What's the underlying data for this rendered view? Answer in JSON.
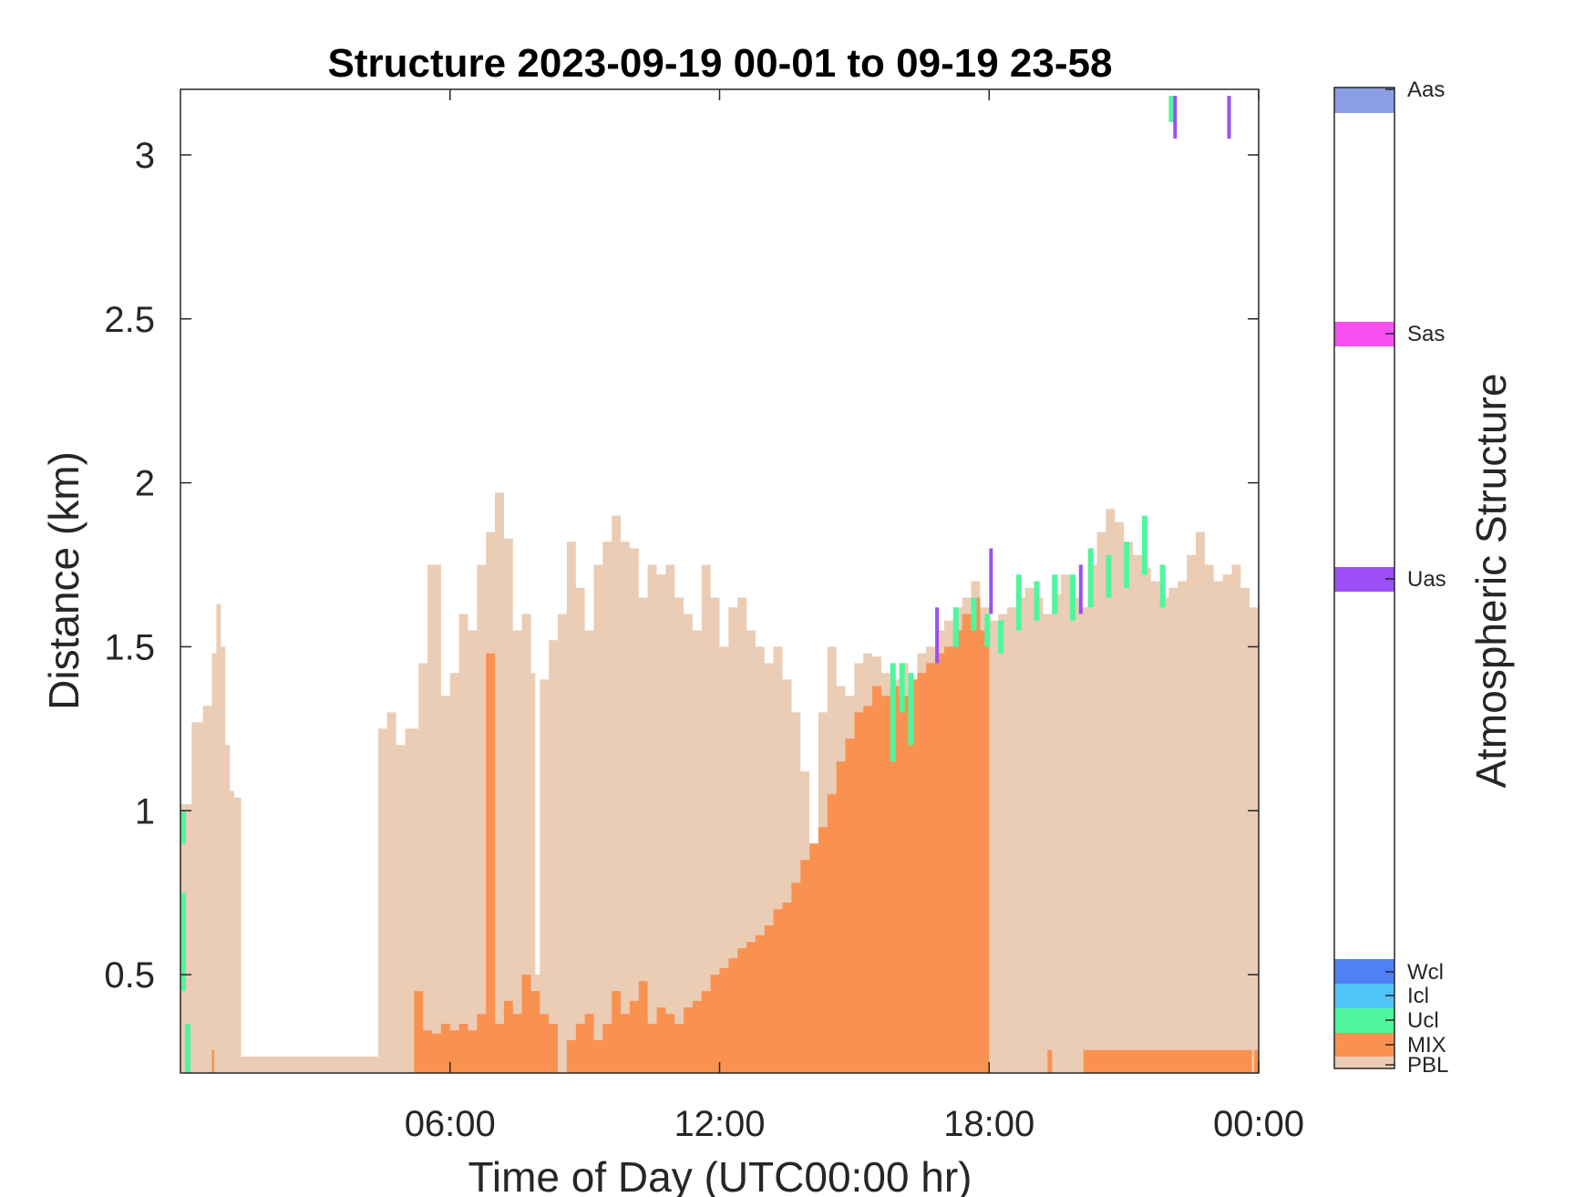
{
  "chart_data": {
    "type": "heatmap",
    "title": "Structure 2023-09-19 00-01 to 09-19 23-58",
    "xlabel": "Time of Day (UTC00:00 hr)",
    "ylabel": "Distance (km)",
    "xlim_hours": [
      0,
      24
    ],
    "ylim_km": [
      0.2,
      3.2
    ],
    "x_ticks": [
      {
        "value": 6,
        "label": "06:00"
      },
      {
        "value": 12,
        "label": "12:00"
      },
      {
        "value": 18,
        "label": "18:00"
      },
      {
        "value": 24,
        "label": "00:00"
      }
    ],
    "y_ticks": [
      {
        "value": 0.5,
        "label": "0.5"
      },
      {
        "value": 1,
        "label": "1"
      },
      {
        "value": 1.5,
        "label": "1.5"
      },
      {
        "value": 2,
        "label": "2"
      },
      {
        "value": 2.5,
        "label": "2.5"
      },
      {
        "value": 3,
        "label": "3"
      }
    ],
    "grid": false,
    "colorbar": {
      "label": "Atmospheric Structure",
      "classes": [
        {
          "name": "PBL",
          "color": "#ebccb5"
        },
        {
          "name": "MIX",
          "color": "#f99250"
        },
        {
          "name": "Ucl",
          "color": "#4ef79e"
        },
        {
          "name": "Icl",
          "color": "#50c3f7"
        },
        {
          "name": "Wcl",
          "color": "#4f80f4"
        },
        {
          "name": "Uas",
          "color": "#9b4ff4"
        },
        {
          "name": "Sas",
          "color": "#f74ff0"
        },
        {
          "name": "Aas",
          "color": "#8b9de4"
        }
      ]
    },
    "pbl_top_profile": [
      [
        0.0,
        1.02
      ],
      [
        0.25,
        1.27
      ],
      [
        0.5,
        1.32
      ],
      [
        0.7,
        1.48
      ],
      [
        0.8,
        1.63
      ],
      [
        0.9,
        1.5
      ],
      [
        1.0,
        1.2
      ],
      [
        1.1,
        1.06
      ],
      [
        1.2,
        1.04
      ],
      [
        1.35,
        0.25
      ],
      [
        4.3,
        0.25
      ],
      [
        4.4,
        1.25
      ],
      [
        4.6,
        1.3
      ],
      [
        4.8,
        1.2
      ],
      [
        5.0,
        1.25
      ],
      [
        5.3,
        1.45
      ],
      [
        5.5,
        1.75
      ],
      [
        5.8,
        1.35
      ],
      [
        6.0,
        1.42
      ],
      [
        6.2,
        1.6
      ],
      [
        6.4,
        1.55
      ],
      [
        6.6,
        1.75
      ],
      [
        6.8,
        1.85
      ],
      [
        7.0,
        1.97
      ],
      [
        7.2,
        1.83
      ],
      [
        7.4,
        1.55
      ],
      [
        7.6,
        1.6
      ],
      [
        7.8,
        1.42
      ],
      [
        7.9,
        0.5
      ],
      [
        8.0,
        1.4
      ],
      [
        8.2,
        1.52
      ],
      [
        8.4,
        1.6
      ],
      [
        8.6,
        1.82
      ],
      [
        8.8,
        1.68
      ],
      [
        9.0,
        1.55
      ],
      [
        9.2,
        1.75
      ],
      [
        9.4,
        1.82
      ],
      [
        9.6,
        1.9
      ],
      [
        9.8,
        1.82
      ],
      [
        10.0,
        1.8
      ],
      [
        10.2,
        1.65
      ],
      [
        10.4,
        1.75
      ],
      [
        10.6,
        1.72
      ],
      [
        10.8,
        1.75
      ],
      [
        11.0,
        1.65
      ],
      [
        11.2,
        1.6
      ],
      [
        11.4,
        1.55
      ],
      [
        11.6,
        1.75
      ],
      [
        11.8,
        1.65
      ],
      [
        12.0,
        1.5
      ],
      [
        12.2,
        1.62
      ],
      [
        12.4,
        1.65
      ],
      [
        12.6,
        1.55
      ],
      [
        12.8,
        1.5
      ],
      [
        13.0,
        1.45
      ],
      [
        13.2,
        1.5
      ],
      [
        13.4,
        1.4
      ],
      [
        13.6,
        1.3
      ],
      [
        13.8,
        1.12
      ],
      [
        14.0,
        0.78
      ],
      [
        14.2,
        1.3
      ],
      [
        14.4,
        1.5
      ],
      [
        14.6,
        1.38
      ],
      [
        14.8,
        1.35
      ],
      [
        15.0,
        1.45
      ],
      [
        15.2,
        1.48
      ],
      [
        15.4,
        1.47
      ],
      [
        15.6,
        1.42
      ],
      [
        15.8,
        1.4
      ],
      [
        16.0,
        1.45
      ],
      [
        16.2,
        1.4
      ],
      [
        16.4,
        1.48
      ],
      [
        16.6,
        1.5
      ],
      [
        16.8,
        1.55
      ],
      [
        17.0,
        1.58
      ],
      [
        17.2,
        1.62
      ],
      [
        17.4,
        1.65
      ],
      [
        17.6,
        1.7
      ],
      [
        17.8,
        1.62
      ],
      [
        18.0,
        1.58
      ],
      [
        18.2,
        1.6
      ],
      [
        18.4,
        1.62
      ],
      [
        18.6,
        1.65
      ],
      [
        18.8,
        1.68
      ],
      [
        19.0,
        1.65
      ],
      [
        19.2,
        1.6
      ],
      [
        19.4,
        1.66
      ],
      [
        19.6,
        1.72
      ],
      [
        19.8,
        1.65
      ],
      [
        20.0,
        1.62
      ],
      [
        20.2,
        1.75
      ],
      [
        20.4,
        1.85
      ],
      [
        20.6,
        1.92
      ],
      [
        20.8,
        1.88
      ],
      [
        21.0,
        1.82
      ],
      [
        21.2,
        1.78
      ],
      [
        21.4,
        1.74
      ],
      [
        21.6,
        1.7
      ],
      [
        21.8,
        1.65
      ],
      [
        22.0,
        1.68
      ],
      [
        22.2,
        1.7
      ],
      [
        22.4,
        1.78
      ],
      [
        22.6,
        1.85
      ],
      [
        22.8,
        1.75
      ],
      [
        23.0,
        1.7
      ],
      [
        23.2,
        1.72
      ],
      [
        23.4,
        1.75
      ],
      [
        23.6,
        1.68
      ],
      [
        23.8,
        1.62
      ],
      [
        24.0,
        1.58
      ]
    ],
    "mix_top_profile": [
      [
        0.0,
        0.2
      ],
      [
        0.65,
        0.2
      ],
      [
        0.7,
        0.27
      ],
      [
        0.75,
        0.2
      ],
      [
        5.1,
        0.2
      ],
      [
        5.2,
        0.45
      ],
      [
        5.4,
        0.33
      ],
      [
        5.6,
        0.32
      ],
      [
        5.8,
        0.35
      ],
      [
        6.0,
        0.33
      ],
      [
        6.2,
        0.35
      ],
      [
        6.4,
        0.33
      ],
      [
        6.6,
        0.38
      ],
      [
        6.8,
        1.48
      ],
      [
        7.0,
        0.35
      ],
      [
        7.2,
        0.42
      ],
      [
        7.4,
        0.38
      ],
      [
        7.6,
        0.5
      ],
      [
        7.8,
        0.45
      ],
      [
        8.0,
        0.38
      ],
      [
        8.2,
        0.35
      ],
      [
        8.4,
        0.2
      ],
      [
        8.6,
        0.3
      ],
      [
        8.8,
        0.35
      ],
      [
        9.0,
        0.38
      ],
      [
        9.2,
        0.3
      ],
      [
        9.4,
        0.35
      ],
      [
        9.6,
        0.45
      ],
      [
        9.8,
        0.38
      ],
      [
        10.0,
        0.42
      ],
      [
        10.2,
        0.48
      ],
      [
        10.4,
        0.35
      ],
      [
        10.6,
        0.4
      ],
      [
        10.8,
        0.38
      ],
      [
        11.0,
        0.35
      ],
      [
        11.2,
        0.4
      ],
      [
        11.4,
        0.42
      ],
      [
        11.6,
        0.45
      ],
      [
        11.8,
        0.5
      ],
      [
        12.0,
        0.52
      ],
      [
        12.2,
        0.55
      ],
      [
        12.4,
        0.58
      ],
      [
        12.6,
        0.6
      ],
      [
        12.8,
        0.62
      ],
      [
        13.0,
        0.65
      ],
      [
        13.2,
        0.7
      ],
      [
        13.4,
        0.72
      ],
      [
        13.6,
        0.78
      ],
      [
        13.8,
        0.85
      ],
      [
        14.0,
        0.9
      ],
      [
        14.2,
        0.95
      ],
      [
        14.4,
        1.05
      ],
      [
        14.6,
        1.15
      ],
      [
        14.8,
        1.22
      ],
      [
        15.0,
        1.3
      ],
      [
        15.2,
        1.32
      ],
      [
        15.4,
        1.38
      ],
      [
        15.6,
        1.35
      ],
      [
        15.8,
        1.38
      ],
      [
        16.0,
        1.35
      ],
      [
        16.2,
        1.4
      ],
      [
        16.4,
        1.42
      ],
      [
        16.6,
        1.45
      ],
      [
        16.8,
        1.48
      ],
      [
        17.0,
        1.5
      ],
      [
        17.2,
        1.55
      ],
      [
        17.4,
        1.6
      ],
      [
        17.6,
        1.65
      ],
      [
        17.8,
        1.55
      ],
      [
        17.95,
        1.5
      ],
      [
        18.0,
        0.2
      ],
      [
        19.2,
        0.2
      ],
      [
        19.3,
        0.27
      ],
      [
        19.4,
        0.2
      ],
      [
        20.0,
        0.2
      ],
      [
        20.1,
        0.27
      ],
      [
        23.8,
        0.27
      ],
      [
        23.85,
        0.2
      ],
      [
        23.9,
        0.27
      ],
      [
        24.0,
        0.27
      ]
    ],
    "ucl_cells": [
      [
        0.0,
        0.9,
        1.0
      ],
      [
        0.0,
        0.45,
        0.75
      ],
      [
        0.1,
        0.2,
        0.35
      ],
      [
        15.8,
        1.15,
        1.45
      ],
      [
        16.0,
        1.3,
        1.45
      ],
      [
        16.2,
        1.2,
        1.42
      ],
      [
        17.2,
        1.5,
        1.62
      ],
      [
        17.6,
        1.55,
        1.65
      ],
      [
        17.9,
        1.5,
        1.6
      ],
      [
        18.2,
        1.48,
        1.58
      ],
      [
        18.6,
        1.55,
        1.72
      ],
      [
        19.0,
        1.58,
        1.7
      ],
      [
        19.4,
        1.6,
        1.72
      ],
      [
        19.8,
        1.58,
        1.72
      ],
      [
        20.2,
        1.62,
        1.8
      ],
      [
        20.6,
        1.65,
        1.78
      ],
      [
        21.0,
        1.68,
        1.82
      ],
      [
        21.4,
        1.72,
        1.9
      ],
      [
        21.8,
        1.62,
        1.75
      ],
      [
        22.0,
        3.1,
        3.18
      ]
    ],
    "uas_cells": [
      [
        16.8,
        1.45,
        1.62
      ],
      [
        18.0,
        1.6,
        1.8
      ],
      [
        20.0,
        1.6,
        1.75
      ],
      [
        22.1,
        3.05,
        3.18
      ],
      [
        23.3,
        3.05,
        3.18
      ]
    ]
  }
}
